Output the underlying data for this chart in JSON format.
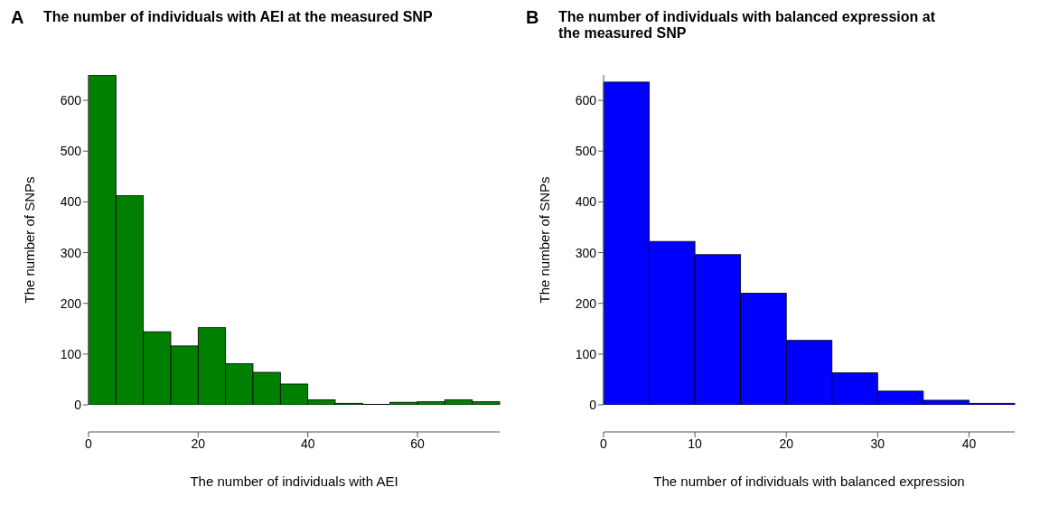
{
  "chart_data": [
    {
      "type": "histogram",
      "title": "The number of individuals with AEI at the measured SNP",
      "xlabel": "The number of individuals with AEI",
      "ylabel": "The number of SNPs",
      "annotations": [
        "A"
      ],
      "color": "#008000",
      "bins": [
        0,
        5,
        10,
        15,
        20,
        25,
        30,
        35,
        40,
        45,
        50,
        55,
        60,
        65,
        70,
        75
      ],
      "values": [
        650,
        412,
        144,
        116,
        152,
        81,
        64,
        41,
        10,
        3,
        1,
        5,
        6,
        10,
        6
      ],
      "xlim": [
        0,
        75
      ],
      "xticks": [
        0,
        20,
        40,
        60
      ],
      "ylim": [
        0,
        650
      ],
      "yticks": [
        0,
        100,
        200,
        300,
        400,
        500,
        600
      ],
      "grid": false,
      "legend": false
    },
    {
      "type": "histogram",
      "title": "The number of individuals with balanced expression at the measured SNP",
      "xlabel": "The number of individuals with balanced expression",
      "ylabel": "The number of SNPs",
      "annotations": [
        "B"
      ],
      "color": "#0000ff",
      "bins": [
        0,
        5,
        10,
        15,
        20,
        25,
        30,
        35,
        40,
        45
      ],
      "values": [
        636,
        322,
        296,
        220,
        127,
        63,
        27,
        9,
        3
      ],
      "xlim": [
        0,
        45
      ],
      "xticks": [
        0,
        10,
        20,
        30,
        40
      ],
      "ylim": [
        0,
        650
      ],
      "yticks": [
        0,
        100,
        200,
        300,
        400,
        500,
        600
      ],
      "grid": false,
      "legend": false
    }
  ]
}
